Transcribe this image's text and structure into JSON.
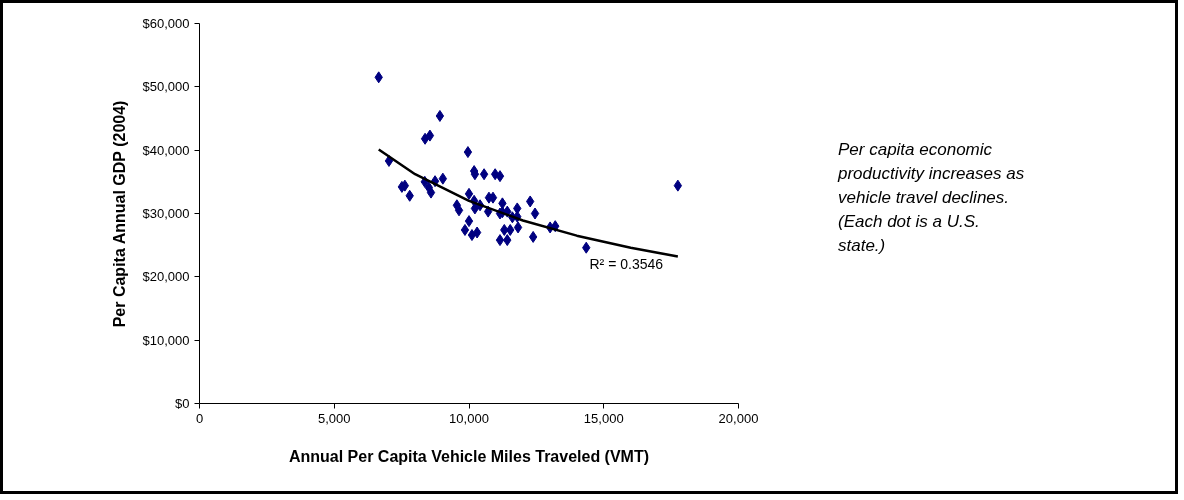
{
  "chart_data": {
    "type": "scatter",
    "xlabel": "Annual Per Capita Vehicle Miles Traveled (VMT)",
    "ylabel": "Per Capita Annual GDP (2004)",
    "xlim": [
      0,
      20000
    ],
    "ylim": [
      0,
      60000
    ],
    "xticks": [
      0,
      {
        "value": 5000,
        "label": "5,000"
      },
      {
        "value": 10000,
        "label": "10,000"
      },
      {
        "value": 15000,
        "label": "15,000"
      },
      {
        "value": 20000,
        "label": "20,000"
      }
    ],
    "yticks": [
      {
        "value": 0,
        "label": "$0"
      },
      {
        "value": 10000,
        "label": "$10,000"
      },
      {
        "value": 20000,
        "label": "$20,000"
      },
      {
        "value": 30000,
        "label": "$30,000"
      },
      {
        "value": 40000,
        "label": "$40,000"
      },
      {
        "value": 50000,
        "label": "$50,000"
      },
      {
        "value": 60000,
        "label": "$60,000"
      }
    ],
    "grid": false,
    "series": [
      {
        "color": "#000080",
        "marker": "diamond",
        "x": [
          6650,
          8920,
          8370,
          8550,
          7030,
          7510,
          7620,
          7800,
          8360,
          8510,
          8590,
          8740,
          9030,
          9960,
          10190,
          10220,
          10560,
          10970,
          11150,
          10000,
          10190,
          9550,
          9630,
          10220,
          10410,
          10740,
          10890,
          10710,
          11150,
          10000,
          9850,
          10110,
          10300,
          11150,
          11240,
          11240,
          11420,
          11790,
          11610,
          11790,
          12270,
          12450,
          11310,
          11530,
          11820,
          11420,
          12380,
          13010,
          13200,
          14350,
          17750
        ],
        "values": [
          51500,
          45400,
          41800,
          42300,
          38300,
          34200,
          34400,
          32800,
          35000,
          34100,
          33300,
          35100,
          35500,
          39700,
          36700,
          36200,
          36200,
          36200,
          35900,
          33100,
          32000,
          31300,
          30500,
          30800,
          31300,
          32500,
          32500,
          30300,
          30000,
          28800,
          27400,
          26600,
          27000,
          25800,
          31600,
          30200,
          30300,
          30800,
          29400,
          29500,
          31900,
          30000,
          27400,
          27400,
          27800,
          25800,
          26300,
          27800,
          28000,
          24600,
          34400
        ]
      },
      {
        "type": "line",
        "color": "#000000",
        "line_style": "solid",
        "x": [
          6650,
          8000,
          10000,
          12000,
          14000,
          16000,
          17750
        ],
        "values": [
          40100,
          36200,
          32000,
          28900,
          26500,
          24600,
          23200
        ]
      }
    ],
    "annotations": [
      "R² = 0.3546",
      "Per capita economic productivity increases as vehicle travel declines. (Each dot is a U.S. state.)"
    ]
  }
}
